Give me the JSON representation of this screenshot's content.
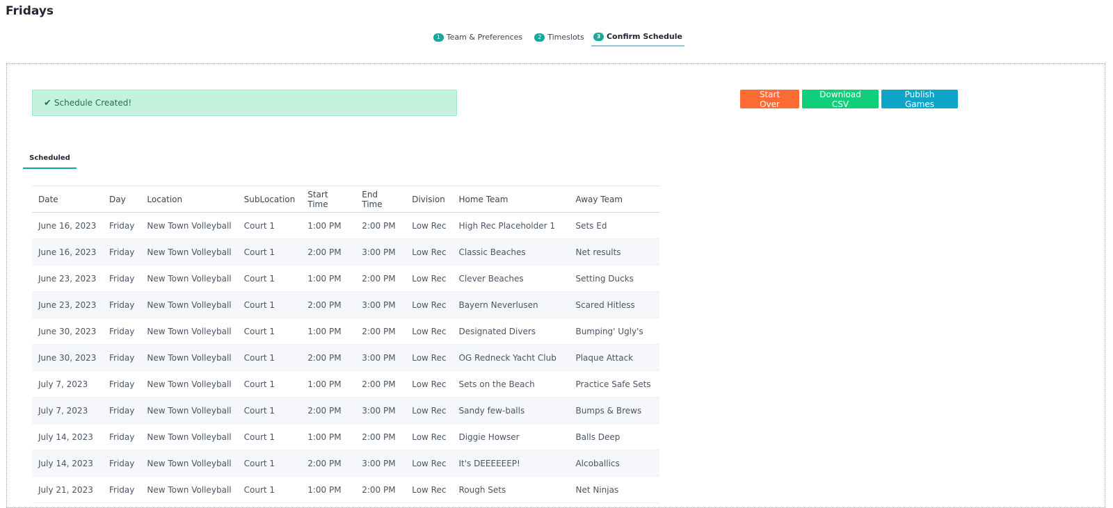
{
  "page": {
    "title": "Fridays"
  },
  "steps": [
    {
      "num": "1",
      "label": "Team & Preferences"
    },
    {
      "num": "2",
      "label": "Timeslots"
    },
    {
      "num": "3",
      "label": "Confirm Schedule"
    }
  ],
  "alert": {
    "icon": "✔",
    "text": "Schedule Created!"
  },
  "actions": {
    "start_over": "Start Over",
    "download_csv": "Download CSV",
    "publish_games": "Publish Games"
  },
  "colors": {
    "start_over": "#ff6b35",
    "download_csv": "#0fcf7b",
    "publish_games": "#0ea5c9",
    "accent": "#16a99a",
    "alert_bg": "#c3f3df"
  },
  "subtab": {
    "label": "Scheduled"
  },
  "table": {
    "headers": [
      "Date",
      "Day",
      "Location",
      "SubLocation",
      "Start Time",
      "End Time",
      "Division",
      "Home Team",
      "Away Team"
    ],
    "rows": [
      [
        "June 16, 2023",
        "Friday",
        "New Town Volleyball",
        "Court 1",
        "1:00 PM",
        "2:00 PM",
        "Low Rec",
        "High Rec Placeholder 1",
        "Sets Ed"
      ],
      [
        "June 16, 2023",
        "Friday",
        "New Town Volleyball",
        "Court 1",
        "2:00 PM",
        "3:00 PM",
        "Low Rec",
        "Classic Beaches",
        "Net results"
      ],
      [
        "June 23, 2023",
        "Friday",
        "New Town Volleyball",
        "Court 1",
        "1:00 PM",
        "2:00 PM",
        "Low Rec",
        "Clever Beaches",
        "Setting Ducks"
      ],
      [
        "June 23, 2023",
        "Friday",
        "New Town Volleyball",
        "Court 1",
        "2:00 PM",
        "3:00 PM",
        "Low Rec",
        "Bayern Neverlusen",
        "Scared Hitless"
      ],
      [
        "June 30, 2023",
        "Friday",
        "New Town Volleyball",
        "Court 1",
        "1:00 PM",
        "2:00 PM",
        "Low Rec",
        "Designated Divers",
        "Bumping' Ugly's"
      ],
      [
        "June 30, 2023",
        "Friday",
        "New Town Volleyball",
        "Court 1",
        "2:00 PM",
        "3:00 PM",
        "Low Rec",
        "OG Redneck Yacht Club",
        "Plaque Attack"
      ],
      [
        "July 7, 2023",
        "Friday",
        "New Town Volleyball",
        "Court 1",
        "1:00 PM",
        "2:00 PM",
        "Low Rec",
        "Sets on the Beach",
        "Practice Safe Sets"
      ],
      [
        "July 7, 2023",
        "Friday",
        "New Town Volleyball",
        "Court 1",
        "2:00 PM",
        "3:00 PM",
        "Low Rec",
        "Sandy few-balls",
        "Bumps & Brews"
      ],
      [
        "July 14, 2023",
        "Friday",
        "New Town Volleyball",
        "Court 1",
        "1:00 PM",
        "2:00 PM",
        "Low Rec",
        "Diggie Howser",
        "Balls Deep"
      ],
      [
        "July 14, 2023",
        "Friday",
        "New Town Volleyball",
        "Court 1",
        "2:00 PM",
        "3:00 PM",
        "Low Rec",
        "It's DEEEEEEP!",
        "Alcoballics"
      ],
      [
        "July 21, 2023",
        "Friday",
        "New Town Volleyball",
        "Court 1",
        "1:00 PM",
        "2:00 PM",
        "Low Rec",
        "Rough Sets",
        "Net Ninjas"
      ]
    ]
  }
}
